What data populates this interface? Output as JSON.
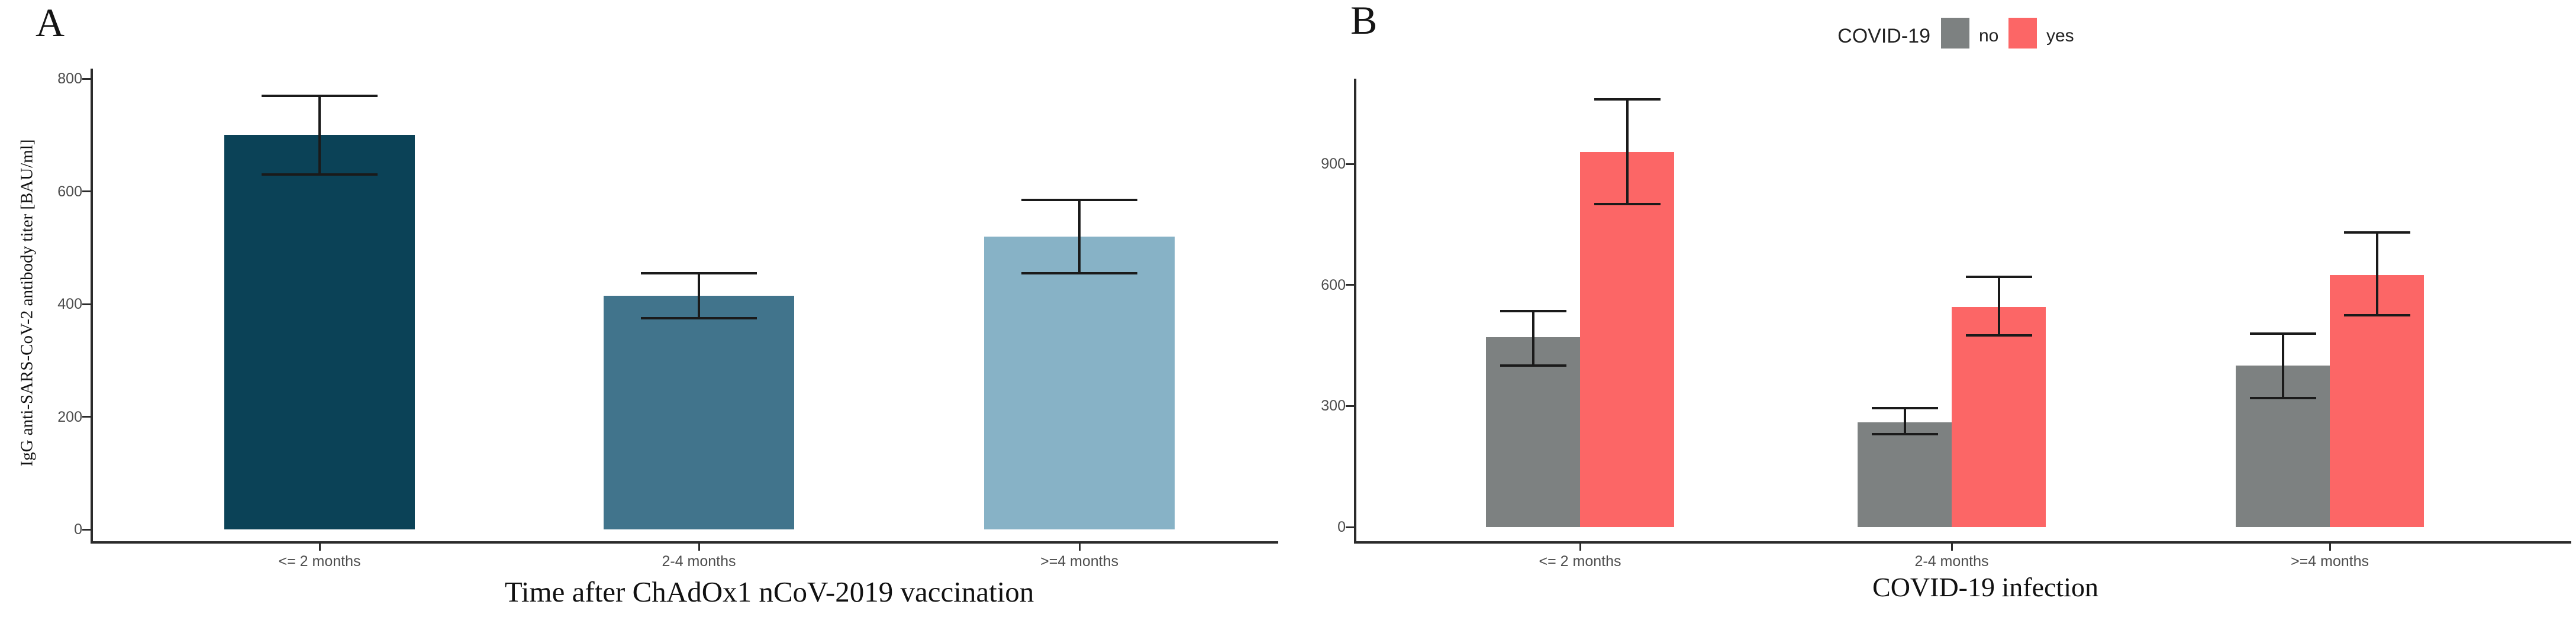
{
  "chart_data": [
    {
      "panel_letter": "A",
      "type": "bar",
      "title": "",
      "xlabel": "Time after ChAdOx1 nCoV-2019 vaccination",
      "ylabel": "IgG anti-SARS-CoV-2 antibody titer [BAU/ml]",
      "categories": [
        "<= 2 months",
        "2-4 months",
        ">=4 months"
      ],
      "values": [
        700,
        415,
        520
      ],
      "error_low": [
        630,
        375,
        455
      ],
      "error_high": [
        770,
        455,
        585
      ],
      "bar_colors": [
        "#0b4257",
        "#41748c",
        "#87b2c6"
      ],
      "yticks": [
        0,
        200,
        400,
        600,
        800
      ],
      "ylim": [
        0,
        820
      ],
      "grid": false
    },
    {
      "panel_letter": "B",
      "type": "grouped_bar",
      "title": "",
      "xlabel": "COVID-19 infection",
      "ylabel": "",
      "categories": [
        "<= 2 months",
        "2-4 months",
        ">=4 months"
      ],
      "series": [
        {
          "name": "no",
          "color": "#7d8181",
          "values": [
            470,
            260,
            400
          ],
          "error_low": [
            400,
            230,
            320
          ],
          "error_high": [
            535,
            295,
            480
          ]
        },
        {
          "name": "yes",
          "color": "#fc6666",
          "values": [
            930,
            545,
            625
          ],
          "error_low": [
            800,
            475,
            525
          ],
          "error_high": [
            1060,
            620,
            730
          ]
        }
      ],
      "yticks": [
        0,
        300,
        600,
        900
      ],
      "ylim": [
        0,
        1110
      ],
      "legend": {
        "title": "COVID-19"
      },
      "grid": false
    }
  ]
}
